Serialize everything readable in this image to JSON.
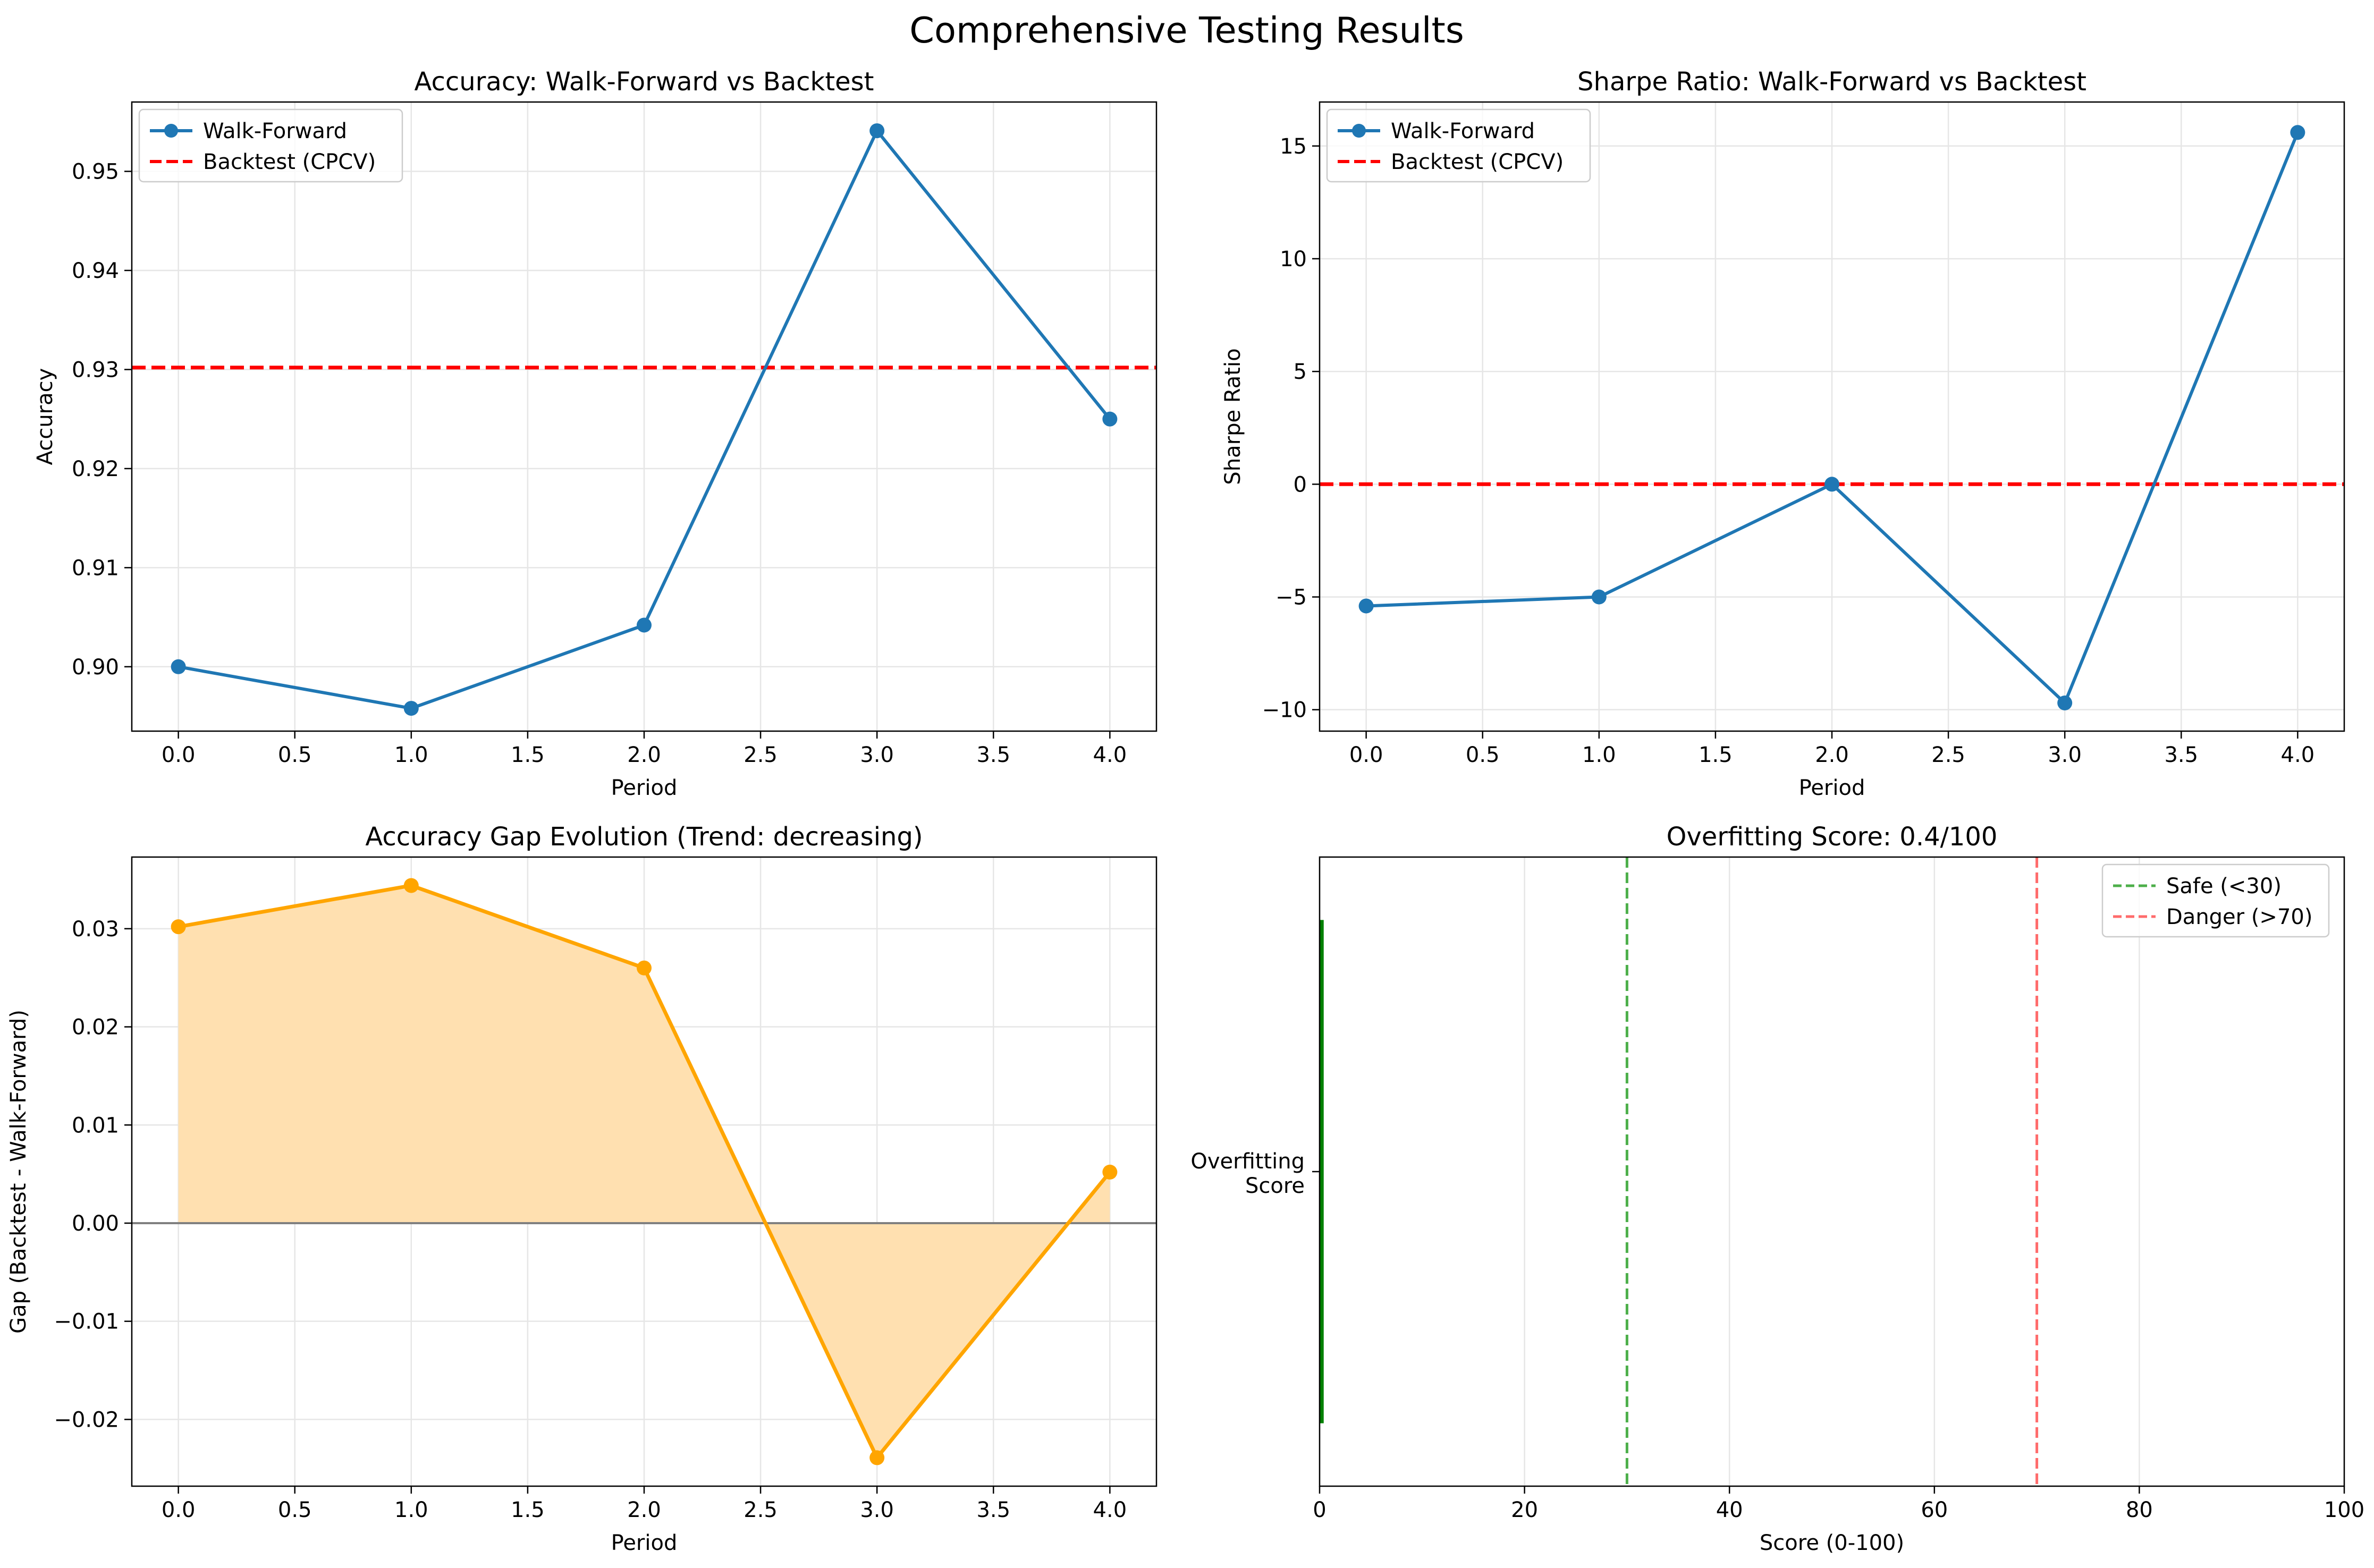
{
  "figure": {
    "title": "Comprehensive Testing Results"
  },
  "colors": {
    "walk_forward": "#1f77b4",
    "backtest": "#ff0000",
    "gap": "#ffa500",
    "gap_fill": "#ffe0b0",
    "score_bar": "#008000",
    "safe": "#4daf4a",
    "danger": "#ff6b6b",
    "grid": "#e6e6e6",
    "zero_line": "#808080"
  },
  "chart_data": [
    {
      "id": "accuracy",
      "type": "line",
      "title": "Accuracy: Walk-Forward vs Backtest",
      "xlabel": "Period",
      "ylabel": "Accuracy",
      "xlim": [
        -0.2,
        4.2
      ],
      "ylim": [
        0.8935,
        0.957
      ],
      "xticks": [
        0.0,
        0.5,
        1.0,
        1.5,
        2.0,
        2.5,
        3.0,
        3.5,
        4.0
      ],
      "yticks": [
        0.9,
        0.91,
        0.92,
        0.93,
        0.94,
        0.95
      ],
      "xtick_labels": [
        "0.0",
        "0.5",
        "1.0",
        "1.5",
        "2.0",
        "2.5",
        "3.0",
        "3.5",
        "4.0"
      ],
      "ytick_labels": [
        "0.90",
        "0.91",
        "0.92",
        "0.93",
        "0.94",
        "0.95"
      ],
      "grid": true,
      "legend": "upper-left",
      "series": [
        {
          "name": "Walk-Forward",
          "x": [
            0,
            1,
            2,
            3,
            4
          ],
          "values": [
            0.9,
            0.8958,
            0.9042,
            0.9541,
            0.925
          ]
        }
      ],
      "hline": {
        "name": "Backtest (CPCV)",
        "value": 0.9302
      }
    },
    {
      "id": "sharpe",
      "type": "line",
      "title": "Sharpe Ratio: Walk-Forward vs Backtest",
      "xlabel": "Period",
      "ylabel": "Sharpe Ratio",
      "xlim": [
        -0.2,
        4.2
      ],
      "ylim": [
        -10.95,
        16.95
      ],
      "xticks": [
        0.0,
        0.5,
        1.0,
        1.5,
        2.0,
        2.5,
        3.0,
        3.5,
        4.0
      ],
      "yticks": [
        -10,
        -5,
        0,
        5,
        10,
        15
      ],
      "xtick_labels": [
        "0.0",
        "0.5",
        "1.0",
        "1.5",
        "2.0",
        "2.5",
        "3.0",
        "3.5",
        "4.0"
      ],
      "ytick_labels": [
        "−10",
        "−5",
        "0",
        "5",
        "10",
        "15"
      ],
      "grid": true,
      "legend": "upper-left",
      "series": [
        {
          "name": "Walk-Forward",
          "x": [
            0,
            1,
            2,
            3,
            4
          ],
          "values": [
            -5.4,
            -5.0,
            0.0,
            -9.7,
            15.6
          ]
        }
      ],
      "hline": {
        "name": "Backtest (CPCV)",
        "value": 0.0
      }
    },
    {
      "id": "gap",
      "type": "area",
      "title": "Accuracy Gap Evolution (Trend: decreasing)",
      "xlabel": "Period",
      "ylabel": "Gap (Backtest - Walk-Forward)",
      "xlim": [
        -0.2,
        4.2
      ],
      "ylim": [
        -0.0268,
        0.0373
      ],
      "xticks": [
        0.0,
        0.5,
        1.0,
        1.5,
        2.0,
        2.5,
        3.0,
        3.5,
        4.0
      ],
      "yticks": [
        -0.02,
        -0.01,
        0.0,
        0.01,
        0.02,
        0.03
      ],
      "xtick_labels": [
        "0.0",
        "0.5",
        "1.0",
        "1.5",
        "2.0",
        "2.5",
        "3.0",
        "3.5",
        "4.0"
      ],
      "ytick_labels": [
        "−0.02",
        "−0.01",
        "0.00",
        "0.01",
        "0.02",
        "0.03"
      ],
      "grid": true,
      "series": [
        {
          "x": [
            0,
            1,
            2,
            3,
            4
          ],
          "values": [
            0.0302,
            0.0344,
            0.026,
            -0.0239,
            0.0052
          ]
        }
      ],
      "baseline": 0
    },
    {
      "id": "score",
      "type": "bar",
      "orientation": "horizontal",
      "title": "Overfitting Score: 0.4/100",
      "xlabel": "Score (0-100)",
      "ylabel": "",
      "xlim": [
        0,
        100
      ],
      "ylim": [
        -0.5,
        0.5
      ],
      "xticks": [
        0,
        20,
        40,
        60,
        80,
        100
      ],
      "xtick_labels": [
        "0",
        "20",
        "40",
        "60",
        "80",
        "100"
      ],
      "categories": [
        "Overfitting\nScore"
      ],
      "category_lines": [
        "Overfitting",
        "Score"
      ],
      "values": [
        0.4
      ],
      "grid": true,
      "legend": "upper-right",
      "vlines": [
        {
          "name": "Safe (<30)",
          "value": 30
        },
        {
          "name": "Danger (>70)",
          "value": 70
        }
      ]
    }
  ]
}
